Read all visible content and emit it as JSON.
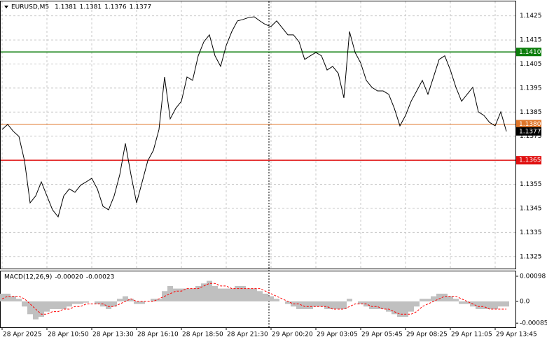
{
  "chart_data": [
    {
      "type": "line",
      "title": "EURUSD,M5",
      "ohlc": [
        1.1381,
        1.1381,
        1.1376,
        1.1377
      ],
      "categories": [
        "28 Apr 2025",
        null,
        null,
        null,
        null,
        null,
        null,
        null,
        "28 Apr 10:50",
        null,
        null,
        null,
        null,
        null,
        null,
        null,
        "28 Apr 13:30",
        null,
        null,
        null,
        null,
        null,
        null,
        null,
        "28 Apr 16:10",
        null,
        null,
        null,
        null,
        null,
        null,
        null,
        "28 Apr 18:50",
        null,
        null,
        null,
        null,
        null,
        null,
        null,
        "28 Apr 21:30",
        null,
        null,
        null,
        null,
        null,
        null,
        null,
        "29 Apr 00:20",
        null,
        null,
        null,
        null,
        null,
        null,
        null,
        "29 Apr 03:05",
        null,
        null,
        null,
        null,
        null,
        null,
        null,
        "29 Apr 05:45",
        null,
        null,
        null,
        null,
        null,
        null,
        null,
        "29 Apr 08:25",
        null,
        null,
        null,
        null,
        null,
        null,
        null,
        "29 Apr 11:05",
        null,
        null,
        null,
        null,
        null,
        null,
        null,
        "29 Apr 13:45",
        null,
        null
      ],
      "series": [
        {
          "color": "#000000",
          "values": [
            1.13778,
            1.13799,
            1.1377,
            1.13749,
            1.13648,
            1.13473,
            1.13502,
            1.1356,
            1.13502,
            1.13444,
            1.13415,
            1.13502,
            1.13531,
            1.13517,
            1.13546,
            1.1356,
            1.13575,
            1.13531,
            1.13459,
            1.13444,
            1.13502,
            1.1359,
            1.1372,
            1.1359,
            1.13473,
            1.1356,
            1.13648,
            1.13691,
            1.13778,
            1.13996,
            1.13822,
            1.13866,
            1.13895,
            1.13996,
            1.13982,
            1.14084,
            1.14142,
            1.14171,
            1.14084,
            1.1404,
            1.14127,
            1.14185,
            1.14229,
            1.14235,
            1.14243,
            1.14246,
            1.14229,
            1.14214,
            1.14206,
            1.14229,
            1.142,
            1.14171,
            1.14171,
            1.14142,
            1.14069,
            1.14084,
            1.14098,
            1.14084,
            1.14025,
            1.1404,
            1.14011,
            1.13909,
            1.14185,
            1.14098,
            1.14054,
            1.13982,
            1.13953,
            1.13938,
            1.13938,
            1.13924,
            1.13866,
            1.13793,
            1.13836,
            1.13895,
            1.13938,
            1.13982,
            1.13924,
            1.13996,
            1.14069,
            1.14084,
            1.14025,
            1.13953,
            1.13895,
            1.13924,
            1.13953,
            1.13851,
            1.13836,
            1.13807,
            1.13793,
            1.13851,
            1.1377
          ]
        }
      ],
      "levels": [
        {
          "value": 1.141,
          "label": "1.1410",
          "color": "#0b7d0b"
        },
        {
          "value": 1.138,
          "label": "1.1380",
          "color": "#e0762a"
        },
        {
          "value": 1.1365,
          "label": "1.1365",
          "color": "#e01010"
        }
      ],
      "last_price": 1.1377,
      "ylim": [
        1.132,
        1.1431
      ],
      "yticks": [
        1.1325,
        1.1335,
        1.1345,
        1.1355,
        1.1365,
        1.1375,
        1.1385,
        1.1395,
        1.1405,
        1.1415,
        1.1425
      ],
      "grid": true
    },
    {
      "type": "bar",
      "title": "MACD(12,26,9)",
      "values": [
        -0.0002,
        -0.00023
      ],
      "value_labels": [
        "-0.00020",
        "-0.00023"
      ],
      "series": [
        {
          "type": "bar",
          "color": "#c0c0c0",
          "values": [
            0.0003,
            0.0003,
            0.0002,
            0.0001,
            -0.0002,
            -0.0005,
            -0.0007,
            -0.0006,
            -0.0004,
            -0.0003,
            -0.0003,
            -0.0003,
            -0.0002,
            -0.0001,
            -0.0001,
            -5e-05,
            0,
            -0.0001,
            -0.0002,
            -0.0003,
            -0.0002,
            0.0001,
            0.0002,
            0.0001,
            -0.0001,
            -0.0001,
            0,
            0.0001,
            0.0001,
            0.0004,
            0.0006,
            0.0005,
            0.0005,
            0.0005,
            0.0005,
            0.0006,
            0.0007,
            0.0008,
            0.0006,
            0.0005,
            0.0005,
            0.0005,
            0.0006,
            0.0006,
            0.0005,
            0.0005,
            0.0004,
            0.0003,
            0.0002,
            0.0001,
            0,
            -0.0001,
            -0.0002,
            -0.0003,
            -0.0003,
            -0.0003,
            -0.0002,
            -0.0002,
            -0.0003,
            -0.0003,
            -0.0003,
            -0.0003,
            0.0001,
            0,
            -0.0001,
            -0.0002,
            -0.0003,
            -0.0003,
            -0.0003,
            -0.0004,
            -0.0005,
            -0.0006,
            -0.0006,
            -0.0004,
            -0.0002,
            0.0001,
            0.0001,
            0.0002,
            0.0003,
            0.0003,
            0.0002,
            0.0001,
            -0.0001,
            -0.0001,
            -0.0002,
            -0.0003,
            -0.0003,
            -0.0003,
            -0.0003,
            -0.0002,
            -0.0002
          ]
        },
        {
          "type": "line",
          "color": "#ff0000",
          "values": [
            0.0001,
            0.0002,
            0.0002,
            0.0002,
            0.0001,
            -0.0001,
            -0.0003,
            -0.0005,
            -0.0005,
            -0.0004,
            -0.0004,
            -0.0003,
            -0.0003,
            -0.0002,
            -0.0002,
            -0.0001,
            -0.0001,
            -0.0001,
            -0.0001,
            -0.0002,
            -0.0002,
            -0.0001,
            0,
            0.0001,
            0,
            0,
            0,
            0,
            0.0001,
            0.0002,
            0.0003,
            0.0004,
            0.0004,
            0.0005,
            0.0005,
            0.0005,
            0.0006,
            0.0007,
            0.0007,
            0.0006,
            0.0006,
            0.0005,
            0.0005,
            0.0005,
            0.0005,
            0.0005,
            0.0005,
            0.0004,
            0.0003,
            0.0002,
            0.0001,
            0,
            -0.0001,
            -0.0001,
            -0.0002,
            -0.0002,
            -0.0002,
            -0.0002,
            -0.0002,
            -0.0003,
            -0.0003,
            -0.0003,
            -0.0002,
            -0.0001,
            -0.0001,
            -0.0001,
            -0.0002,
            -0.0002,
            -0.0003,
            -0.0003,
            -0.0004,
            -0.0005,
            -0.0005,
            -0.0005,
            -0.0004,
            -0.0002,
            -0.0001,
            0,
            0.0001,
            0.0002,
            0.0002,
            0.0002,
            0.0001,
            0,
            -0.0001,
            -0.0002,
            -0.0002,
            -0.0003,
            -0.0003,
            -0.0003,
            -0.0003
          ]
        }
      ],
      "ylim": [
        -0.00101,
        0.00117
      ],
      "yticks": [
        0.00098,
        {
          "value": 0,
          "label": "0.0"
        },
        -0.00085
      ]
    }
  ]
}
